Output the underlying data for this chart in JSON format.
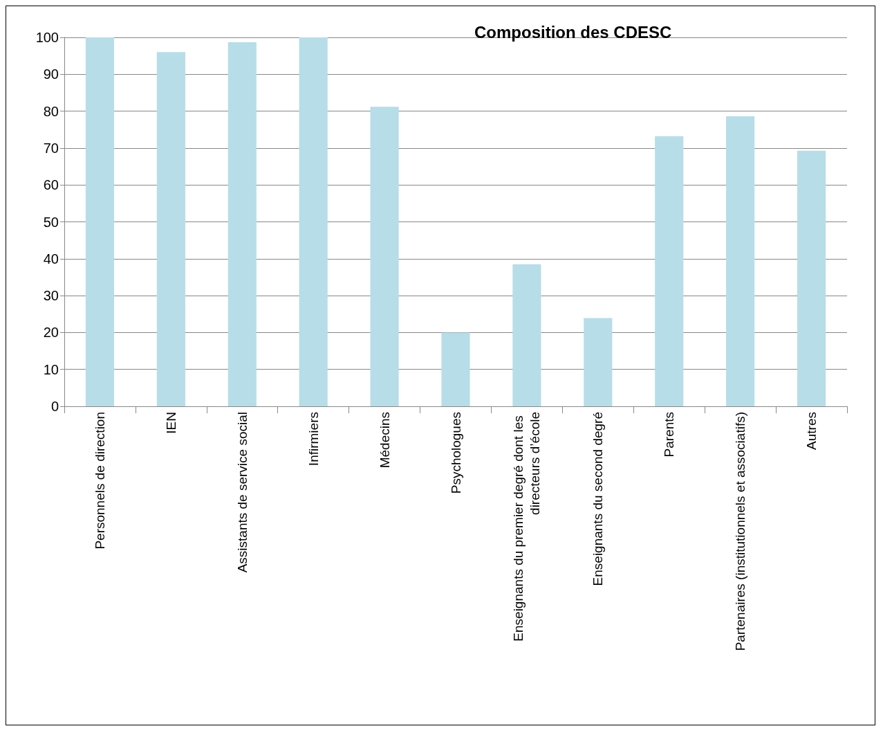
{
  "chart_data": {
    "type": "bar",
    "title": "Composition des CDESC",
    "categories": [
      "Personnels de direction",
      "IEN",
      "Assistants de service social",
      "Infirmiers",
      "Médecins",
      "Psychologues",
      "Enseignants du premier degré dont les directeurs d’école",
      "Enseignants du second degré",
      "Parents",
      "Partenaires (institutionnels et associatifs)",
      "Autres"
    ],
    "values": [
      100,
      96,
      98.7,
      100,
      81.2,
      20,
      38.5,
      23.9,
      73.2,
      78.6,
      69.3
    ],
    "color": "#b7dde8",
    "ylim": [
      0,
      100
    ],
    "yticks": [
      0,
      10,
      20,
      30,
      40,
      50,
      60,
      70,
      80,
      90,
      100
    ],
    "grid": true
  }
}
